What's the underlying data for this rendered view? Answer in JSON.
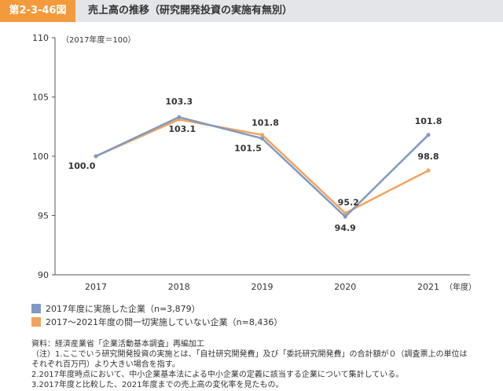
{
  "header": {
    "figure_number": "第2-3-46図",
    "title": "売上高の推移（研究開発投資の実施有無別）"
  },
  "chart_data": {
    "type": "line",
    "title": "",
    "index_note": "（2017年度＝100）",
    "categories": [
      "2017",
      "2018",
      "2019",
      "2020",
      "2021"
    ],
    "x_unit": "（年度）",
    "y_ticks": [
      "110",
      "105",
      "100",
      "95",
      "90"
    ],
    "ylim": [
      90,
      110
    ],
    "grid": false,
    "legend_position": "bottom-left",
    "series": [
      {
        "name": "2017年度に実施した企業（n=3,879）",
        "color": "#7f9ac2",
        "values": [
          100.0,
          103.3,
          101.5,
          94.9,
          101.8
        ],
        "labels": [
          "100.0",
          "103.3",
          "101.5",
          "94.9",
          "101.8"
        ]
      },
      {
        "name": "2017～2021年度の間一切実施していない企業（n=8,436）",
        "color": "#f5a25d",
        "values": [
          100.0,
          103.1,
          101.8,
          95.2,
          98.8
        ],
        "labels": [
          "",
          "103.1",
          "101.8",
          "95.2",
          "98.8"
        ]
      }
    ]
  },
  "notes": {
    "source": "資料：経済産業省「企業活動基本調査」再編加工",
    "note1a": "（注）1.ここでいう研究開発投資の実施とは、「自社研究開発費」及び「委託研究開発費」の合計額が０（調査票上の単位は",
    "note1b": "それぞれ百万円）より大きい場合を指す。",
    "note2": "2.2017年度時点において、中小企業基本法による中小企業の定義に該当する企業について集計している。",
    "note3": "3.2017年度と比較した、2021年度までの売上高の変化率を見たもの。"
  }
}
